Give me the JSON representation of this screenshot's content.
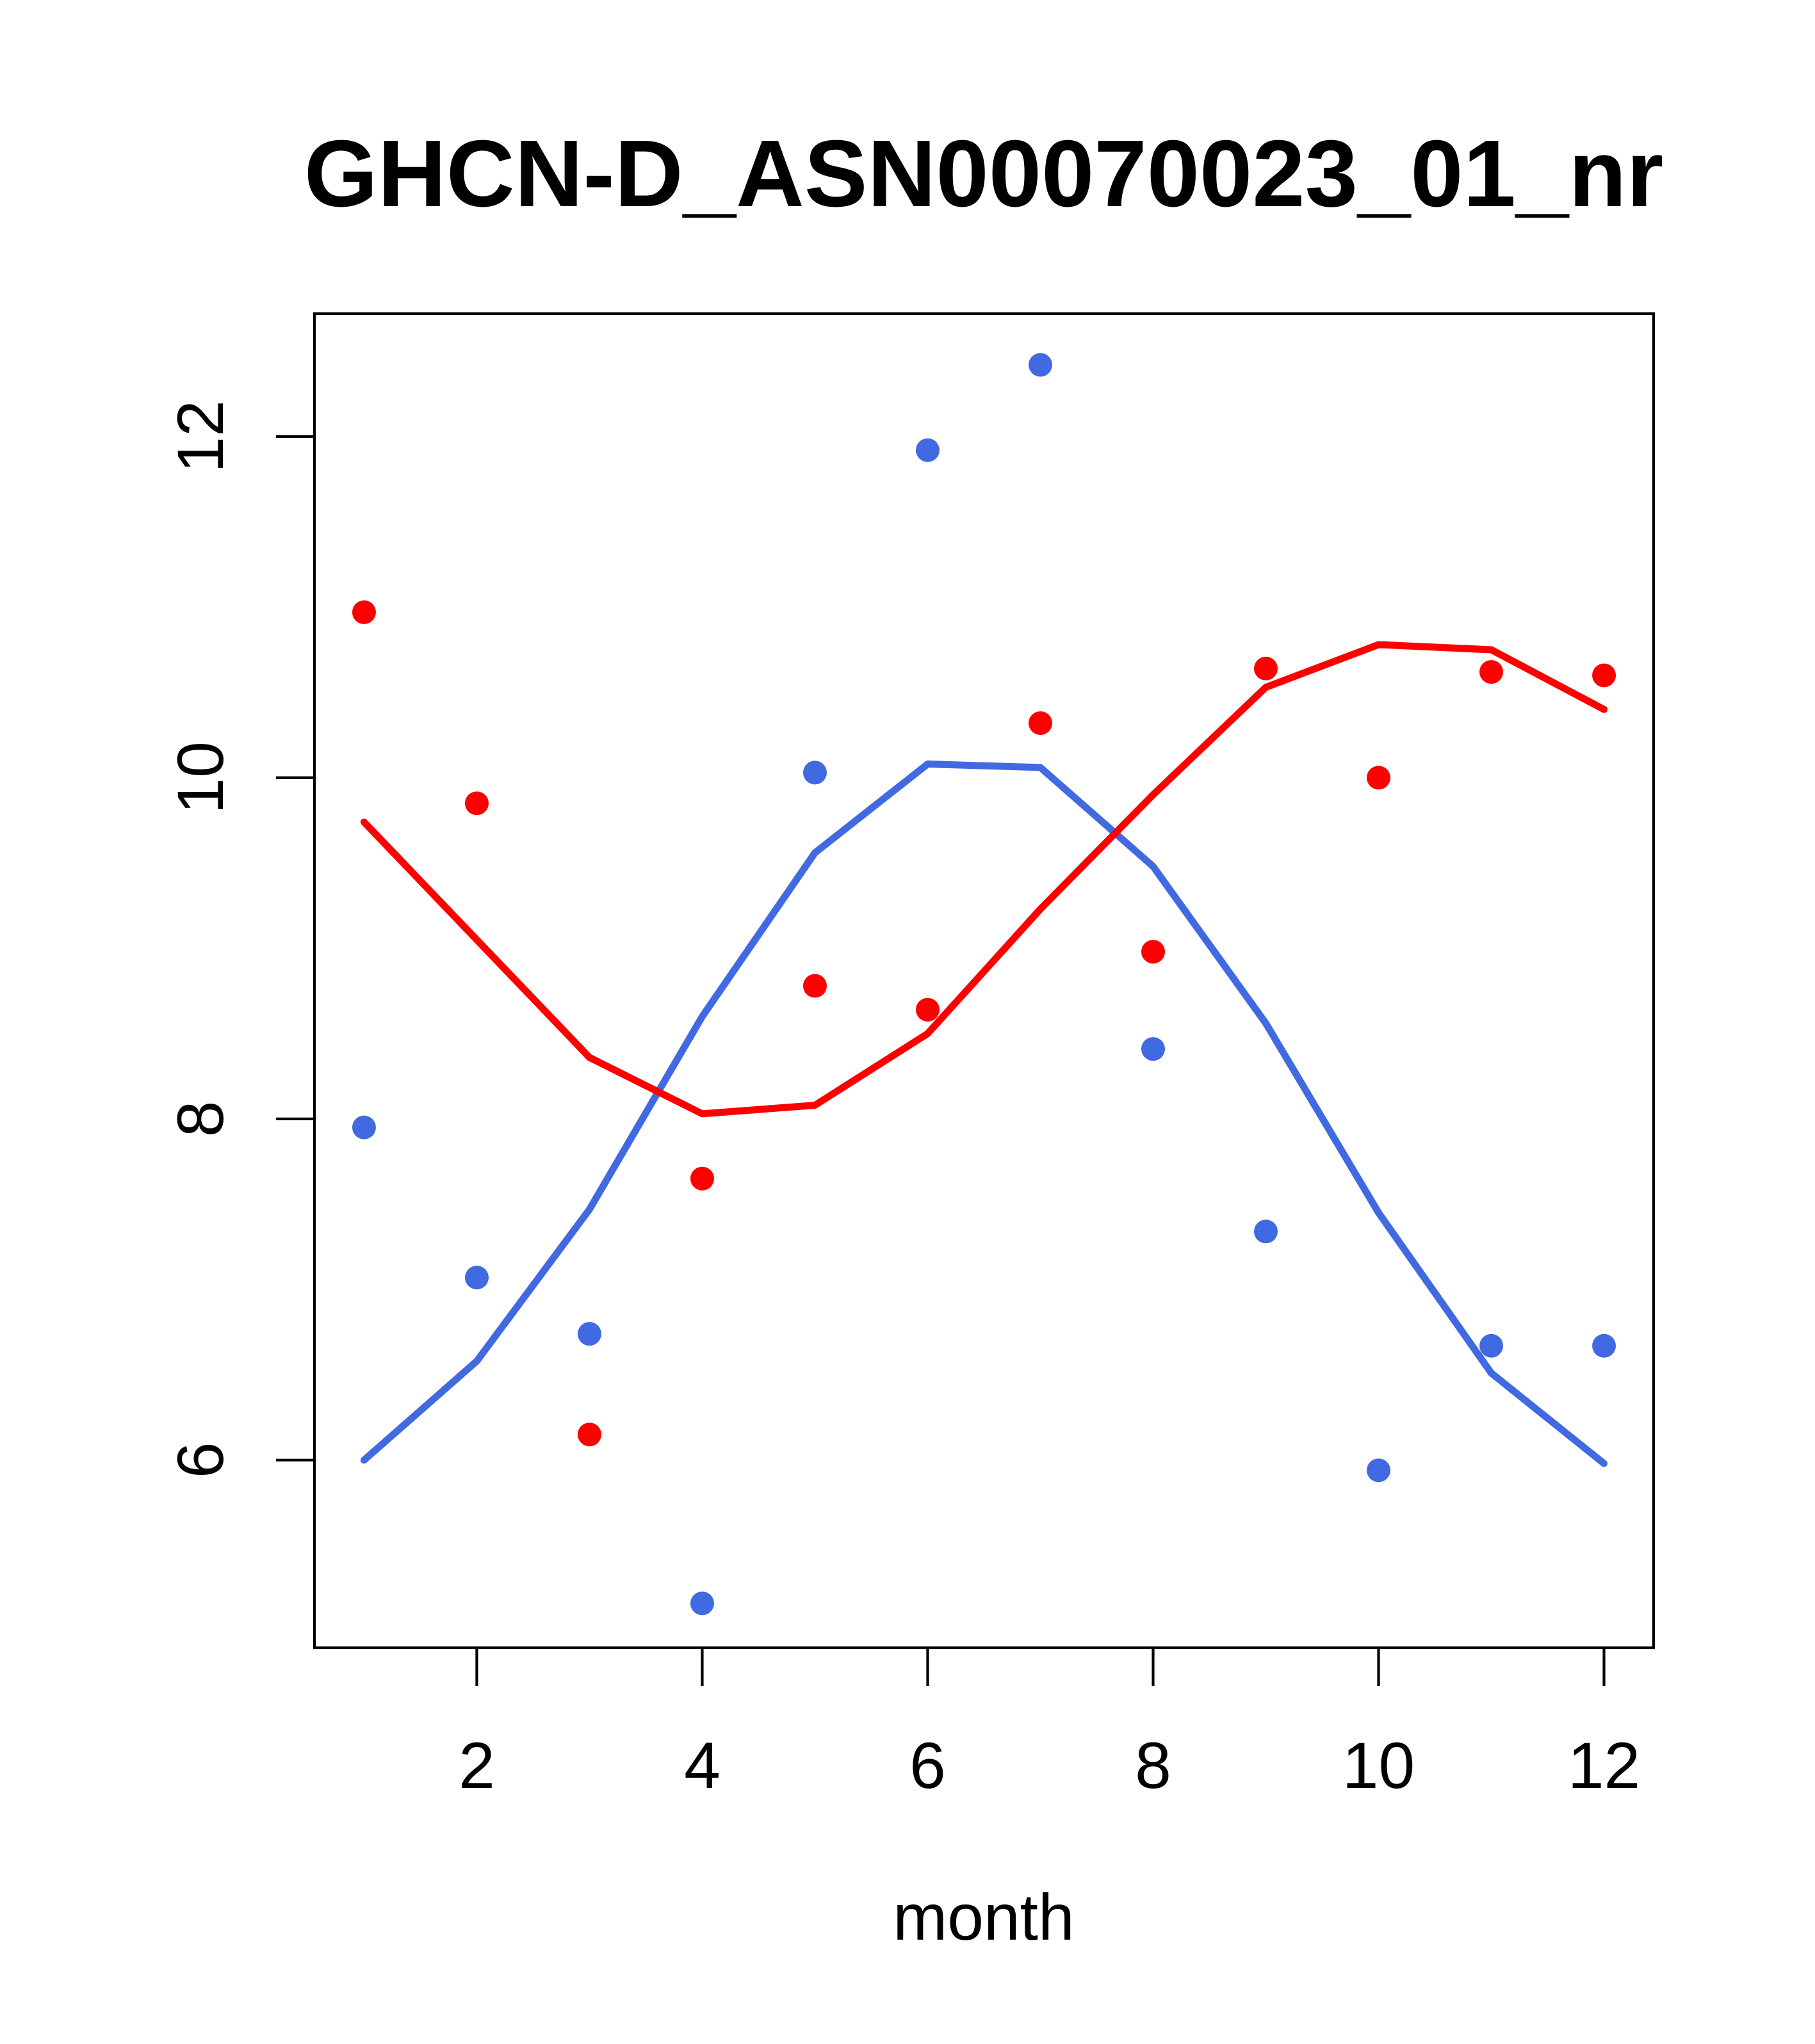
{
  "chart_data": {
    "type": "scatter",
    "title": "GHCN-D_ASN00070023_01_nr",
    "xlabel": "month",
    "ylabel": "",
    "x": [
      1,
      2,
      3,
      4,
      5,
      6,
      7,
      8,
      9,
      10,
      11,
      12
    ],
    "x_ticks": [
      2,
      4,
      6,
      8,
      10,
      12
    ],
    "y_ticks": [
      6,
      8,
      10,
      12
    ],
    "xlim": [
      0.56,
      12.44
    ],
    "ylim": [
      4.9,
      12.72
    ],
    "grid": false,
    "legend_position": "none",
    "colors": {
      "red": "#FF0000",
      "blue": "#4169E1",
      "axis": "#000000"
    },
    "series": [
      {
        "name": "blue-loess-line",
        "kind": "line",
        "color_key": "blue",
        "values": [
          6.0,
          6.58,
          7.47,
          8.6,
          9.56,
          10.08,
          10.06,
          9.48,
          8.56,
          7.45,
          6.51,
          5.98
        ]
      },
      {
        "name": "red-loess-line",
        "kind": "line",
        "color_key": "red",
        "values": [
          9.74,
          9.05,
          8.36,
          8.03,
          8.08,
          8.5,
          9.23,
          9.9,
          10.53,
          10.78,
          10.75,
          10.4
        ]
      },
      {
        "name": "blue-points",
        "kind": "points",
        "color_key": "blue",
        "values": [
          7.95,
          7.07,
          6.74,
          5.16,
          10.03,
          11.92,
          12.42,
          8.41,
          7.34,
          5.94,
          6.67,
          6.67
        ]
      },
      {
        "name": "red-points",
        "kind": "points",
        "color_key": "red",
        "values": [
          10.97,
          9.85,
          6.15,
          7.65,
          8.78,
          8.64,
          10.32,
          8.98,
          10.64,
          10.0,
          10.62,
          10.6
        ]
      }
    ]
  }
}
